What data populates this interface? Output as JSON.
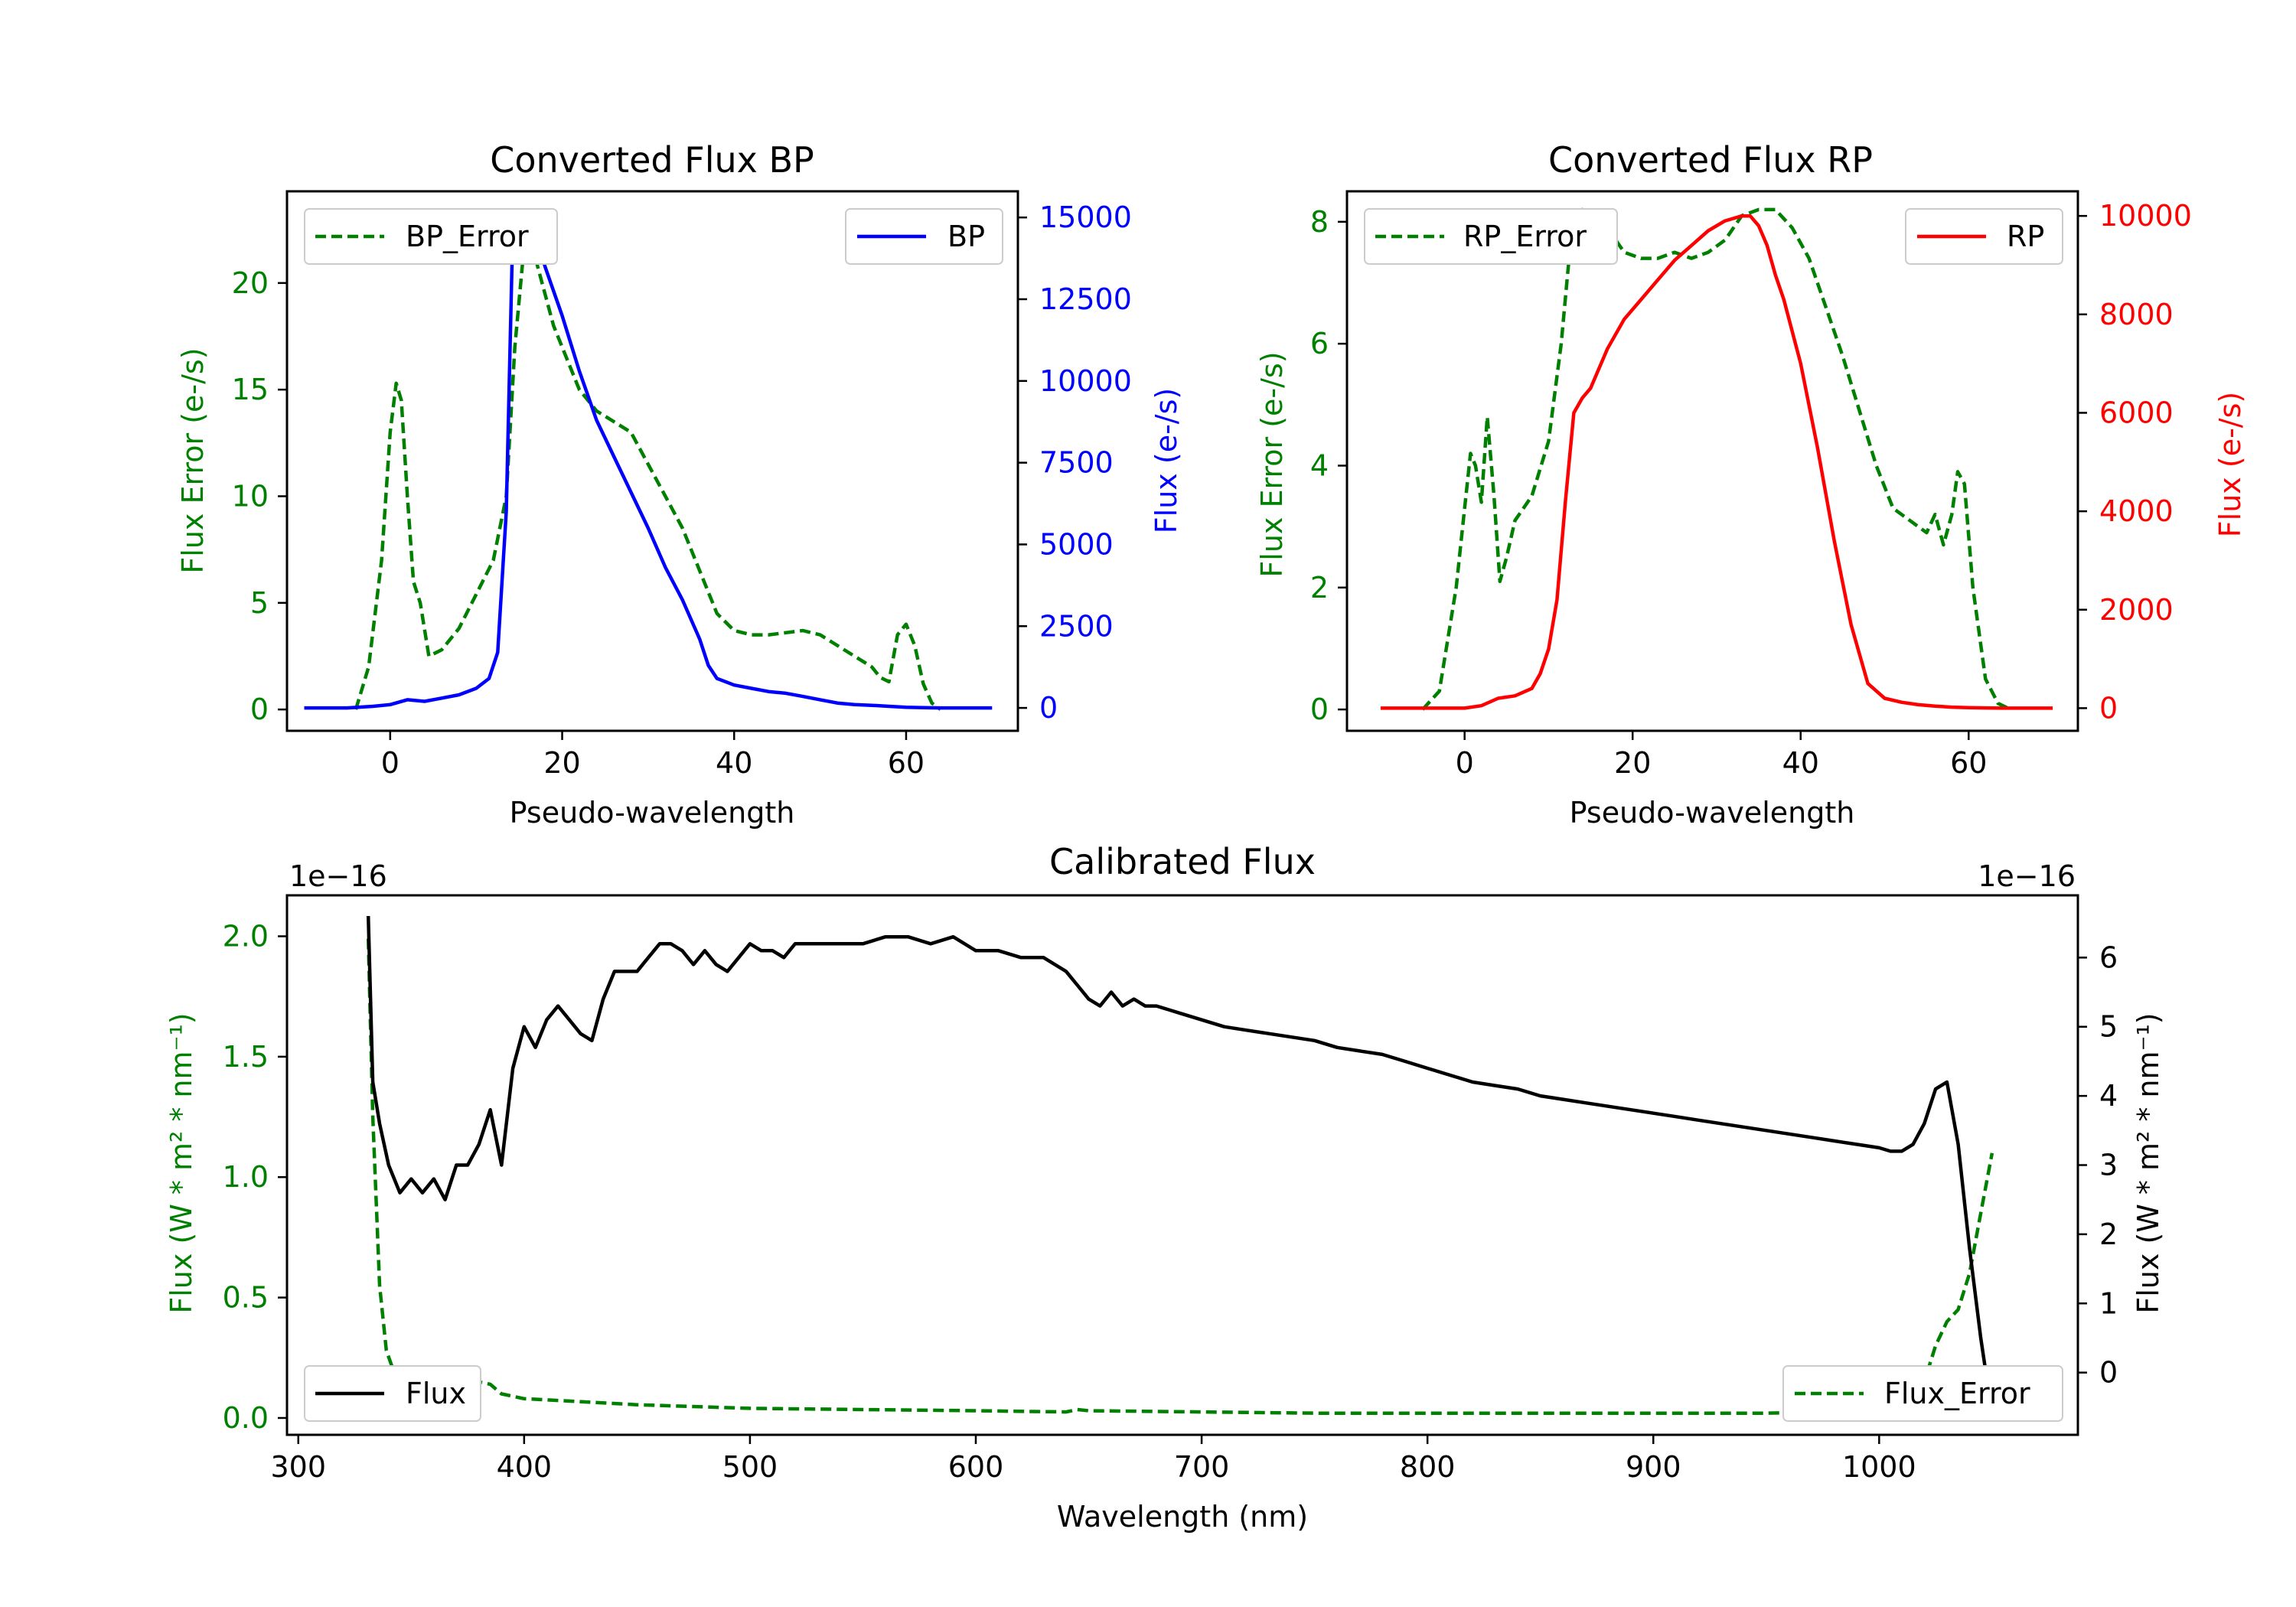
{
  "colors": {
    "bp": "#0000ff",
    "rp": "#ff0000",
    "error": "#008000",
    "flux": "#000000"
  },
  "chart_data": [
    {
      "type": "line",
      "title": "Converted Flux BP",
      "xlabel": "Pseudo-wavelength",
      "ylabel_left": "Flux Error (e-/s)",
      "ylabel_right": "Flux (e-/s)",
      "xlim": [
        -12,
        73
      ],
      "ylim_left": [
        -1,
        24.3
      ],
      "ylim_right": [
        -700,
        15800
      ],
      "xticks": [
        0,
        20,
        40,
        60
      ],
      "yticks_left": [
        0,
        5,
        10,
        15,
        20
      ],
      "yticks_right": [
        0,
        2500,
        5000,
        7500,
        10000,
        12500,
        15000
      ],
      "legend": {
        "error": "BP_Error",
        "flux": "BP"
      },
      "error_series": {
        "name": "BP_Error",
        "axis": "left",
        "style": "dashed",
        "color": "#008000",
        "x": [
          -4,
          -2.5,
          -1,
          0,
          0.7,
          1.3,
          2,
          2.7,
          3.5,
          4.5,
          6,
          8,
          10,
          12,
          13.5,
          14.5,
          15.5,
          17,
          19,
          20.5,
          22,
          24,
          26,
          28,
          30,
          32,
          34,
          36,
          38,
          40,
          42,
          44,
          46,
          48,
          50,
          52,
          54,
          56,
          57,
          58,
          59,
          60,
          61,
          62,
          63,
          64
        ],
        "y": [
          0,
          2,
          7,
          13,
          15.3,
          14.5,
          10,
          6,
          5,
          2.5,
          2.8,
          3.8,
          5.4,
          7,
          10,
          17,
          21.4,
          21,
          18,
          16.5,
          15,
          14,
          13.5,
          13,
          11.5,
          10,
          8.5,
          6.5,
          4.5,
          3.7,
          3.5,
          3.5,
          3.6,
          3.7,
          3.5,
          3,
          2.5,
          2,
          1.5,
          1.3,
          3.5,
          4,
          3,
          1.2,
          0.3,
          0
        ]
      },
      "flux_series": {
        "name": "BP",
        "axis": "right",
        "style": "solid",
        "color": "#0000ff",
        "x": [
          -10,
          -5,
          -2,
          0,
          2,
          4,
          6,
          8,
          10,
          11.5,
          12.5,
          13.5,
          14.2,
          15,
          16,
          17,
          18,
          20,
          22,
          24,
          26,
          28,
          30,
          32,
          34,
          36,
          37,
          38,
          40,
          42,
          44,
          46,
          48,
          50,
          52,
          54,
          56,
          58,
          60,
          62,
          64,
          66,
          68,
          70
        ],
        "y": [
          0,
          0,
          50,
          100,
          250,
          200,
          300,
          400,
          600,
          900,
          1700,
          6000,
          14000,
          14900,
          15000,
          14500,
          13500,
          12000,
          10300,
          8800,
          7700,
          6600,
          5500,
          4300,
          3300,
          2100,
          1300,
          900,
          700,
          600,
          500,
          450,
          350,
          250,
          150,
          100,
          80,
          50,
          20,
          10,
          0,
          0,
          0,
          0
        ]
      }
    },
    {
      "type": "line",
      "title": "Converted Flux RP",
      "xlabel": "Pseudo-wavelength",
      "ylabel_left": "Flux Error (e-/s)",
      "ylabel_right": "Flux (e-/s)",
      "xlim": [
        -14,
        73
      ],
      "ylim_left": [
        -0.35,
        8.5
      ],
      "ylim_right": [
        -460,
        10500
      ],
      "xticks": [
        0,
        20,
        40,
        60
      ],
      "yticks_left": [
        0,
        2,
        4,
        6,
        8
      ],
      "yticks_right": [
        0,
        2000,
        4000,
        6000,
        8000,
        10000
      ],
      "legend": {
        "error": "RP_Error",
        "flux": "RP"
      },
      "error_series": {
        "name": "RP_Error",
        "axis": "left",
        "style": "dashed",
        "color": "#008000",
        "x": [
          -5,
          -3,
          -1,
          0,
          0.7,
          1.3,
          2,
          2.7,
          3.5,
          4.2,
          5,
          6,
          8,
          10,
          11.5,
          12.5,
          14,
          15,
          17,
          19,
          21,
          23,
          25,
          27,
          29,
          31,
          33,
          35,
          37,
          39,
          41,
          43,
          45,
          47,
          49,
          51,
          53,
          55,
          56,
          57,
          58,
          58.7,
          59.5,
          60.5,
          62,
          63.5,
          65
        ],
        "y": [
          0,
          0.3,
          2,
          3.3,
          4.2,
          4,
          3.4,
          4.8,
          3.5,
          2.1,
          2.5,
          3.1,
          3.5,
          4.4,
          6,
          7.5,
          8.2,
          8.1,
          7.9,
          7.5,
          7.4,
          7.4,
          7.5,
          7.4,
          7.5,
          7.7,
          8.1,
          8.2,
          8.2,
          7.9,
          7.4,
          6.6,
          5.8,
          4.9,
          4,
          3.3,
          3.1,
          2.9,
          3.2,
          2.7,
          3.2,
          3.9,
          3.7,
          2,
          0.5,
          0.1,
          0
        ]
      },
      "flux_series": {
        "name": "RP",
        "axis": "right",
        "style": "solid",
        "color": "#ff0000",
        "x": [
          -10,
          -5,
          0,
          2,
          4,
          6,
          8,
          9,
          10,
          11,
          12,
          13,
          14,
          15,
          17,
          19,
          21,
          23,
          25,
          27,
          29,
          31,
          33,
          34,
          35,
          36,
          37,
          38,
          40,
          42,
          44,
          46,
          48,
          50,
          52,
          54,
          56,
          58,
          60,
          62,
          64,
          66,
          68,
          70
        ],
        "y": [
          0,
          0,
          0,
          50,
          200,
          250,
          400,
          700,
          1200,
          2200,
          4200,
          6000,
          6300,
          6500,
          7300,
          7900,
          8300,
          8700,
          9100,
          9400,
          9700,
          9900,
          10000,
          10000,
          9800,
          9400,
          8800,
          8300,
          7000,
          5300,
          3400,
          1700,
          500,
          200,
          120,
          70,
          40,
          20,
          10,
          5,
          0,
          0,
          0,
          0
        ]
      }
    },
    {
      "type": "line",
      "title": "Calibrated Flux",
      "xlabel": "Wavelength (nm)",
      "ylabel_left": "Flux (W * m² * nm⁻¹)",
      "ylabel_right": "Flux (W * m² * nm⁻¹)",
      "offset_left": "1e−16",
      "offset_right": "1e−16",
      "xlim": [
        295,
        1088
      ],
      "ylim_left": [
        -0.07,
        2.17
      ],
      "ylim_right": [
        -0.9,
        6.9
      ],
      "xticks": [
        300,
        400,
        500,
        600,
        700,
        800,
        900,
        1000
      ],
      "yticks_left": [
        0.0,
        0.5,
        1.0,
        1.5,
        2.0
      ],
      "yticks_right": [
        0,
        1,
        2,
        3,
        4,
        5,
        6
      ],
      "legend": {
        "flux": "Flux",
        "error": "Flux_Error"
      },
      "error_series": {
        "name": "Flux_Error",
        "axis": "left",
        "style": "dashed",
        "color": "#008000",
        "x": [
          331,
          333,
          336,
          339,
          342,
          346,
          350,
          360,
          375,
          380,
          385,
          390,
          400,
          420,
          450,
          500,
          550,
          600,
          640,
          645,
          650,
          700,
          750,
          800,
          850,
          900,
          950,
          1000,
          1010,
          1020,
          1025,
          1030,
          1035,
          1040,
          1045,
          1050
        ],
        "y": [
          1.99,
          1.25,
          0.55,
          0.28,
          0.2,
          0.17,
          0.16,
          0.15,
          0.145,
          0.15,
          0.14,
          0.1,
          0.08,
          0.07,
          0.055,
          0.04,
          0.035,
          0.03,
          0.025,
          0.035,
          0.03,
          0.025,
          0.02,
          0.02,
          0.02,
          0.02,
          0.02,
          0.03,
          0.05,
          0.15,
          0.3,
          0.4,
          0.45,
          0.6,
          0.85,
          1.1
        ]
      },
      "flux_series": {
        "name": "Flux",
        "axis": "right",
        "style": "solid",
        "color": "#000000",
        "x": [
          331,
          333,
          336,
          340,
          345,
          350,
          355,
          360,
          365,
          370,
          375,
          380,
          385,
          390,
          395,
          400,
          405,
          410,
          415,
          420,
          425,
          430,
          435,
          440,
          445,
          450,
          455,
          460,
          465,
          470,
          475,
          480,
          485,
          490,
          495,
          500,
          505,
          510,
          515,
          520,
          530,
          540,
          550,
          560,
          570,
          580,
          590,
          600,
          610,
          620,
          630,
          640,
          645,
          650,
          655,
          660,
          665,
          670,
          675,
          680,
          690,
          700,
          710,
          720,
          730,
          740,
          750,
          760,
          770,
          780,
          790,
          800,
          810,
          820,
          830,
          840,
          850,
          860,
          870,
          880,
          890,
          900,
          910,
          920,
          930,
          940,
          950,
          960,
          970,
          980,
          990,
          1000,
          1005,
          1010,
          1015,
          1020,
          1025,
          1030,
          1035,
          1040,
          1045,
          1050
        ],
        "y": [
          6.6,
          4.2,
          3.6,
          3,
          2.6,
          2.8,
          2.6,
          2.8,
          2.5,
          3,
          3,
          3.3,
          3.8,
          3,
          4.4,
          5,
          4.7,
          5.1,
          5.3,
          5.1,
          4.9,
          4.8,
          5.4,
          5.8,
          5.8,
          5.8,
          6,
          6.2,
          6.2,
          6.1,
          5.9,
          6.1,
          5.9,
          5.8,
          6,
          6.2,
          6.1,
          6.1,
          6.0,
          6.2,
          6.2,
          6.2,
          6.2,
          6.3,
          6.3,
          6.2,
          6.3,
          6.1,
          6.1,
          6.0,
          6.0,
          5.8,
          5.6,
          5.4,
          5.3,
          5.5,
          5.3,
          5.4,
          5.3,
          5.3,
          5.2,
          5.1,
          5.0,
          4.95,
          4.9,
          4.85,
          4.8,
          4.7,
          4.65,
          4.6,
          4.5,
          4.4,
          4.3,
          4.2,
          4.15,
          4.1,
          4.0,
          3.95,
          3.9,
          3.85,
          3.8,
          3.75,
          3.7,
          3.65,
          3.6,
          3.55,
          3.5,
          3.45,
          3.4,
          3.35,
          3.3,
          3.25,
          3.2,
          3.2,
          3.3,
          3.6,
          4.1,
          4.2,
          3.3,
          1.8,
          0.5,
          -0.6
        ]
      }
    }
  ]
}
